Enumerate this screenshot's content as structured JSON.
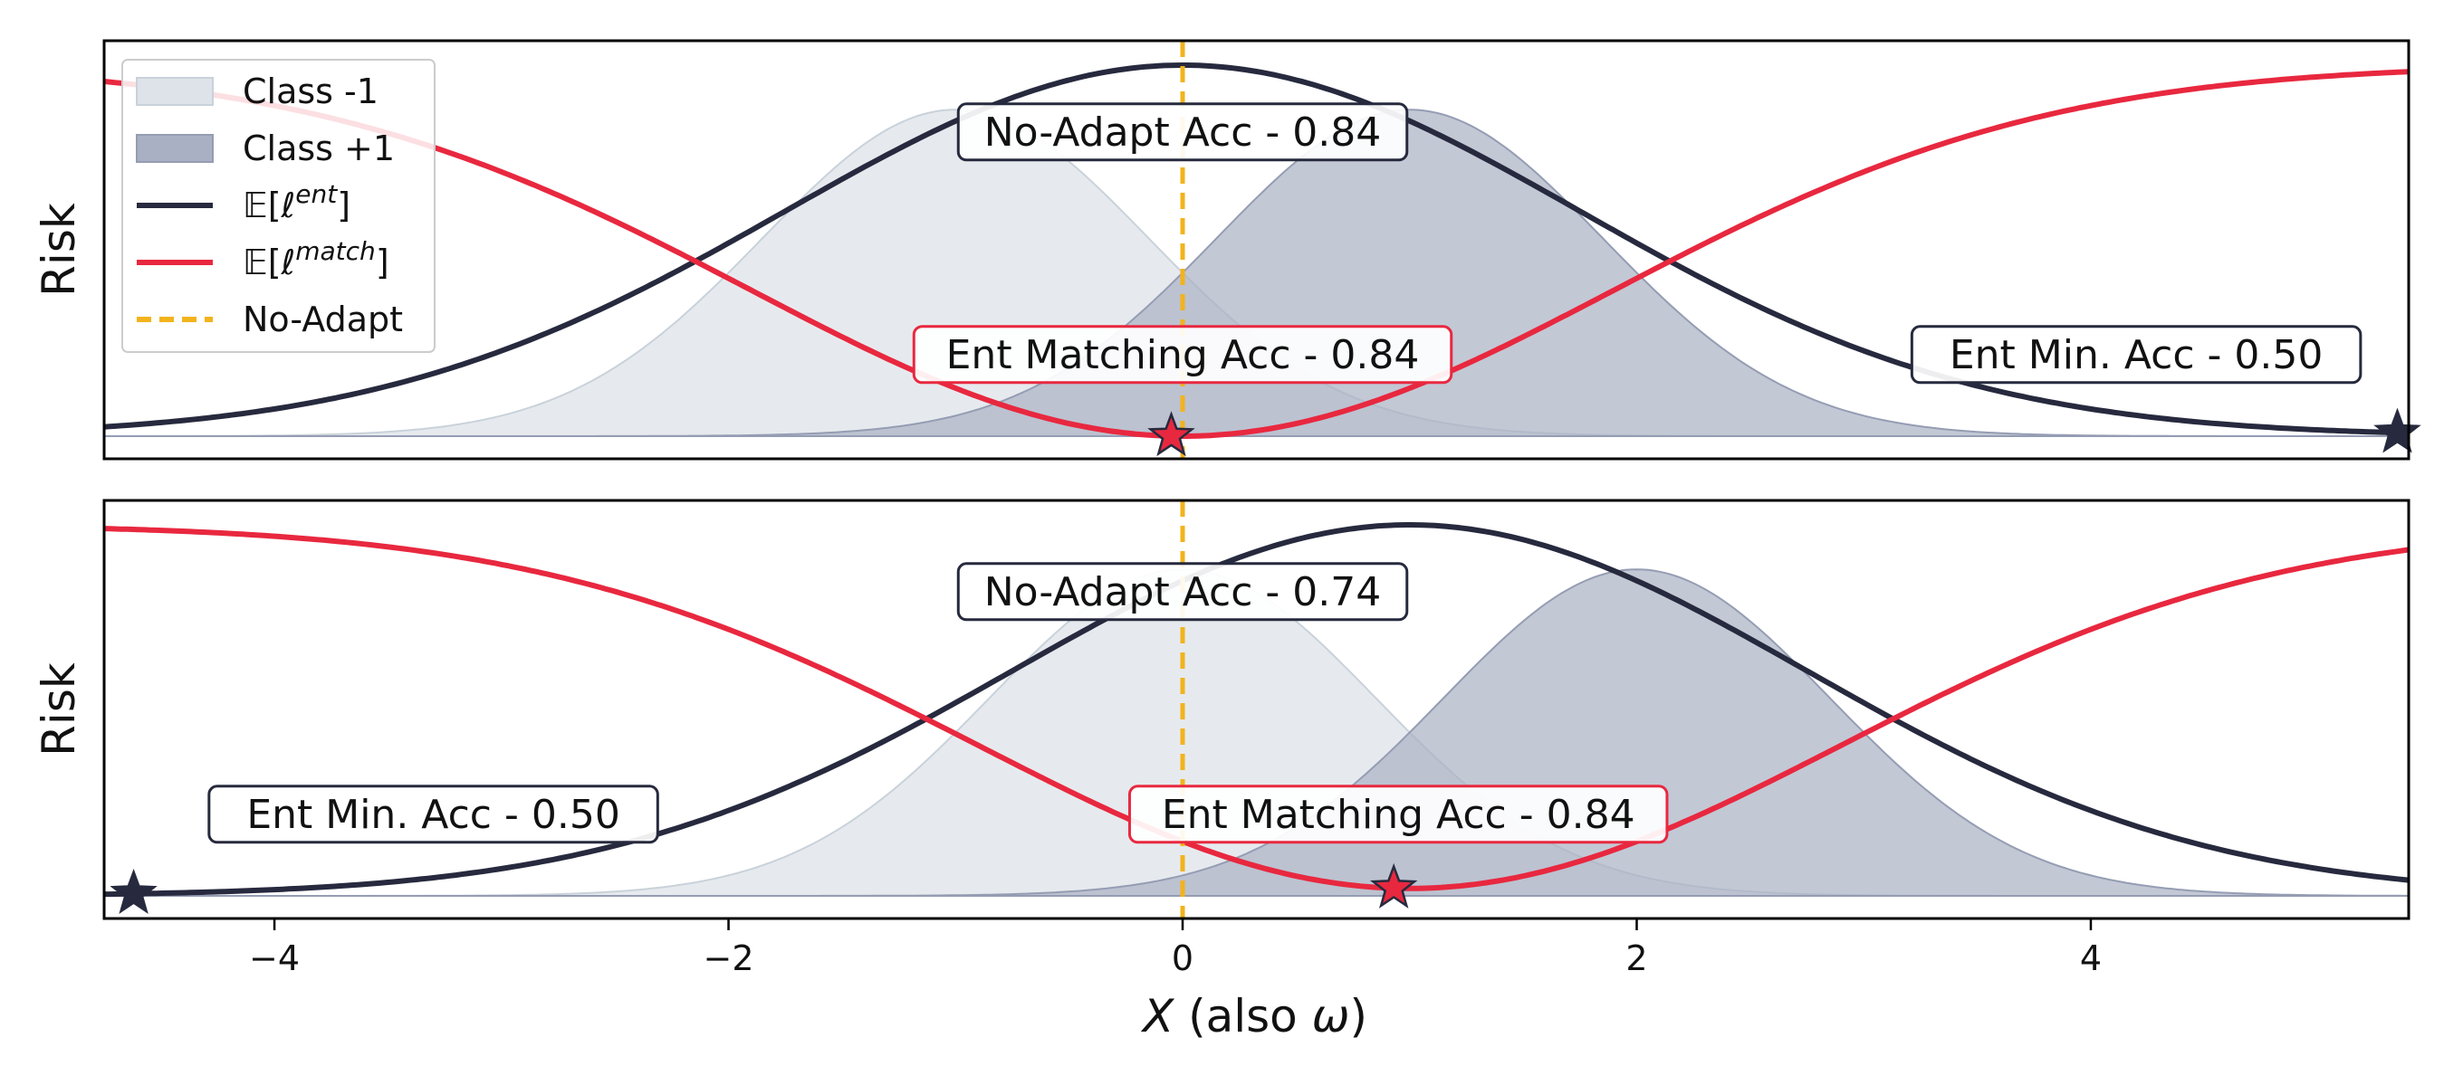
{
  "chart_data": {
    "type": "line",
    "xlabel_italic": "X",
    "xlabel_rest": " (also ",
    "xlabel_omega": "ω",
    "xlabel_close": ")",
    "xlim": [
      -4.75,
      5.4
    ],
    "x_ticks": [
      -4,
      -2,
      0,
      2,
      4
    ],
    "x_tick_labels": [
      "−4",
      "−2",
      "0",
      "2",
      "4"
    ],
    "grid": false,
    "legend_placement": "top-left of upper panel",
    "colors": {
      "class_neg": "#dde3e8",
      "class_pos": "#a9b0c3",
      "ent": "#272a3e",
      "match": "#e8283f",
      "noadapt": "#f2b31c"
    },
    "legend": [
      {
        "key": "class_neg",
        "kind": "patch",
        "label": "Class -1"
      },
      {
        "key": "class_pos",
        "kind": "patch",
        "label": "Class +1"
      },
      {
        "key": "ent",
        "kind": "line",
        "label_base": "𝔼[ℓ",
        "label_sup": "ent",
        "label_end": "]"
      },
      {
        "key": "match",
        "kind": "line",
        "label_base": "𝔼[ℓ",
        "label_sup": "match",
        "label_end": "]"
      },
      {
        "key": "noadapt",
        "kind": "dash",
        "label": "No-Adapt"
      }
    ],
    "panels": [
      {
        "ylabel": "Risk",
        "class_neg_mean": -1,
        "class_pos_mean": 1,
        "ent_peak_x": 0,
        "match_min_x": 0,
        "noadapt_x": 0,
        "annotations": [
          {
            "text": "No-Adapt Acc - 0.84",
            "x": 0,
            "level": 0.82,
            "color_key": "ent"
          },
          {
            "text": "Ent Matching Acc - 0.84",
            "x": 0,
            "level": 0.22,
            "color_key": "match"
          },
          {
            "text": "Ent Min. Acc - 0.50",
            "x": 4.2,
            "level": 0.22,
            "color_key": "ent"
          }
        ],
        "markers": [
          {
            "x": -0.05,
            "series": "match"
          },
          {
            "x": 5.35,
            "series": "ent"
          }
        ]
      },
      {
        "ylabel": "Risk",
        "class_neg_mean": 0,
        "class_pos_mean": 2,
        "ent_peak_x": 1,
        "match_min_x": 1,
        "noadapt_x": 0,
        "annotations": [
          {
            "text": "No-Adapt Acc - 0.74",
            "x": 0,
            "level": 0.82,
            "color_key": "ent"
          },
          {
            "text": "Ent Matching Acc - 0.84",
            "x": 0.95,
            "level": 0.22,
            "color_key": "match"
          },
          {
            "text": "Ent Min. Acc - 0.50",
            "x": -3.3,
            "level": 0.22,
            "color_key": "ent"
          }
        ],
        "markers": [
          {
            "x": -4.62,
            "series": "ent"
          },
          {
            "x": 0.93,
            "series": "match"
          }
        ]
      }
    ]
  }
}
